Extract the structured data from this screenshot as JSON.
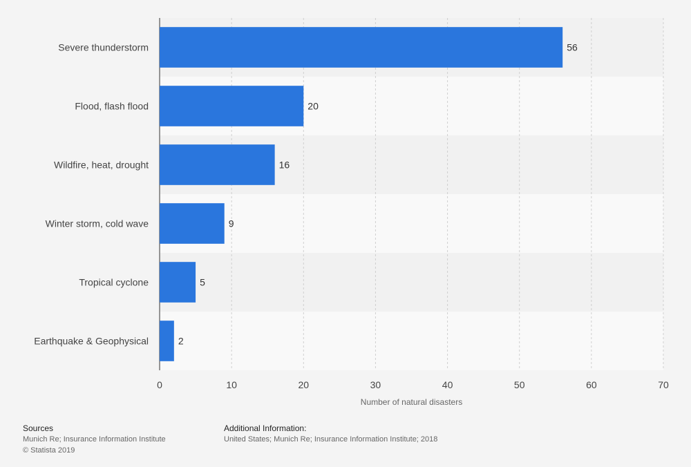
{
  "chart_data": {
    "type": "bar",
    "orientation": "horizontal",
    "categories": [
      "Severe thunderstorm",
      "Flood, flash flood",
      "Wildfire, heat, drought",
      "Winter storm, cold wave",
      "Tropical cyclone",
      "Earthquake & Geophysical"
    ],
    "values": [
      56,
      20,
      16,
      9,
      5,
      2
    ],
    "xlabel": "Number of natural disasters",
    "ylabel": "",
    "xlim": [
      0,
      70
    ],
    "ticks": [
      0,
      10,
      20,
      30,
      40,
      50,
      60,
      70
    ],
    "grid": true,
    "bar_color": "#2a76dd"
  },
  "footer": {
    "sources_title": "Sources",
    "sources_text": "Munich Re; Insurance Information Institute",
    "copyright": "© Statista 2019",
    "info_title": "Additional Information:",
    "info_text": "United States; Munich Re; Insurance Information Institute; 2018"
  }
}
